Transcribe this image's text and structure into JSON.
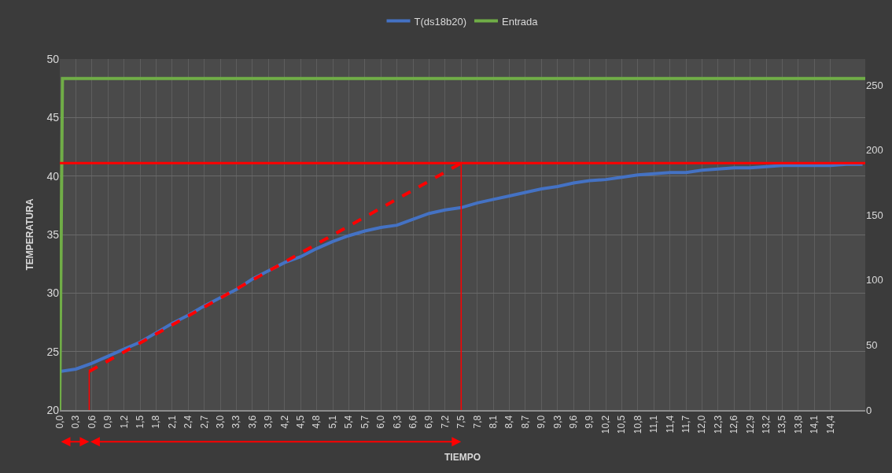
{
  "chart_data": {
    "type": "line",
    "xlabel": "TIEMPO",
    "ylabel": "TEMPERATURA",
    "xlim": [
      0,
      15.05
    ],
    "ylim": [
      20,
      50
    ],
    "yticks": [
      20,
      25,
      30,
      35,
      40,
      45,
      50
    ],
    "y2lim": [
      0,
      270
    ],
    "y2ticks": [
      0,
      50,
      100,
      150,
      200,
      250
    ],
    "xticks": [
      {
        "value": 0,
        "label": "0,0"
      },
      {
        "value": 0.3,
        "label": "0,3"
      },
      {
        "value": 0.6,
        "label": "0,6"
      },
      {
        "value": 0.9,
        "label": "0,9"
      },
      {
        "value": 1.2,
        "label": "1,2"
      },
      {
        "value": 1.5,
        "label": "1,5"
      },
      {
        "value": 1.8,
        "label": "1,8"
      },
      {
        "value": 2.1,
        "label": "2,1"
      },
      {
        "value": 2.4,
        "label": "2,4"
      },
      {
        "value": 2.7,
        "label": "2,7"
      },
      {
        "value": 3.0,
        "label": "3,0"
      },
      {
        "value": 3.3,
        "label": "3,3"
      },
      {
        "value": 3.6,
        "label": "3,6"
      },
      {
        "value": 3.9,
        "label": "3,9"
      },
      {
        "value": 4.2,
        "label": "4,2"
      },
      {
        "value": 4.5,
        "label": "4,5"
      },
      {
        "value": 4.8,
        "label": "4,8"
      },
      {
        "value": 5.1,
        "label": "5,1"
      },
      {
        "value": 5.4,
        "label": "5,4"
      },
      {
        "value": 5.7,
        "label": "5,7"
      },
      {
        "value": 6.0,
        "label": "6,0"
      },
      {
        "value": 6.3,
        "label": "6,3"
      },
      {
        "value": 6.6,
        "label": "6,6"
      },
      {
        "value": 6.9,
        "label": "6,9"
      },
      {
        "value": 7.2,
        "label": "7,2"
      },
      {
        "value": 7.5,
        "label": "7,5"
      },
      {
        "value": 7.8,
        "label": "7,8"
      },
      {
        "value": 8.1,
        "label": "8,1"
      },
      {
        "value": 8.4,
        "label": "8,4"
      },
      {
        "value": 8.7,
        "label": "8,7"
      },
      {
        "value": 9.0,
        "label": "9,0"
      },
      {
        "value": 9.3,
        "label": "9,3"
      },
      {
        "value": 9.6,
        "label": "9,6"
      },
      {
        "value": 9.9,
        "label": "9,9"
      },
      {
        "value": 10.2,
        "label": "10,2"
      },
      {
        "value": 10.5,
        "label": "10,5"
      },
      {
        "value": 10.8,
        "label": "10,8"
      },
      {
        "value": 11.1,
        "label": "11,1"
      },
      {
        "value": 11.4,
        "label": "11,4"
      },
      {
        "value": 11.7,
        "label": "11,7"
      },
      {
        "value": 12.0,
        "label": "12,0"
      },
      {
        "value": 12.3,
        "label": "12,3"
      },
      {
        "value": 12.6,
        "label": "12,6"
      },
      {
        "value": 12.9,
        "label": "12,9"
      },
      {
        "value": 13.2,
        "label": "13,2"
      },
      {
        "value": 13.5,
        "label": "13,5"
      },
      {
        "value": 13.8,
        "label": "13,8"
      },
      {
        "value": 14.1,
        "label": "14,1"
      },
      {
        "value": 14.4,
        "label": "14,4"
      }
    ],
    "grid": true,
    "legend": "top",
    "line_style": "solid",
    "marker": "none",
    "ref_lines": [
      {
        "axis": "y",
        "value": 41.1,
        "color": "#ff0000",
        "line_style": "solid"
      }
    ],
    "series": [
      {
        "name": "T(ds18b20)",
        "color": "#4472c4",
        "x": [
          0,
          0.3,
          0.6,
          0.9,
          1.2,
          1.5,
          1.8,
          2.1,
          2.4,
          2.7,
          3.0,
          3.3,
          3.6,
          3.9,
          4.2,
          4.5,
          4.8,
          5.1,
          5.4,
          5.7,
          6.0,
          6.3,
          6.6,
          6.9,
          7.2,
          7.5,
          7.8,
          8.1,
          8.4,
          8.7,
          9.0,
          9.3,
          9.6,
          9.9,
          10.2,
          10.5,
          10.8,
          11.1,
          11.4,
          11.7,
          12.0,
          12.3,
          12.6,
          12.9,
          13.2,
          13.5,
          13.8,
          14.1,
          14.4,
          14.7,
          15.0
        ],
        "values": [
          23.3,
          23.5,
          24.0,
          24.6,
          25.2,
          25.8,
          26.6,
          27.4,
          28.1,
          28.9,
          29.6,
          30.3,
          31.2,
          31.9,
          32.6,
          33.1,
          33.8,
          34.4,
          34.9,
          35.3,
          35.6,
          35.8,
          36.3,
          36.8,
          37.1,
          37.3,
          37.7,
          38.0,
          38.3,
          38.6,
          38.9,
          39.1,
          39.4,
          39.6,
          39.7,
          39.9,
          40.1,
          40.2,
          40.3,
          40.3,
          40.5,
          40.6,
          40.7,
          40.7,
          40.8,
          40.9,
          40.9,
          40.9,
          40.9,
          41.0,
          41.0
        ]
      },
      {
        "name": "Entrada",
        "color": "#70ad47",
        "axis": "y2",
        "x": [
          0,
          0.05,
          15.05
        ],
        "values": [
          0,
          255,
          255
        ]
      },
      {
        "color": "#ff0000",
        "line_style": "dashed",
        "x": [
          0.55,
          7.5
        ],
        "values": [
          23.3,
          41.1
        ]
      },
      {
        "color": "#ff0000",
        "x": [
          0.55,
          0.55
        ],
        "values": [
          20,
          23.3
        ]
      },
      {
        "color": "#ff0000",
        "x": [
          7.5,
          7.5
        ],
        "values": [
          20,
          41.1
        ]
      }
    ]
  }
}
